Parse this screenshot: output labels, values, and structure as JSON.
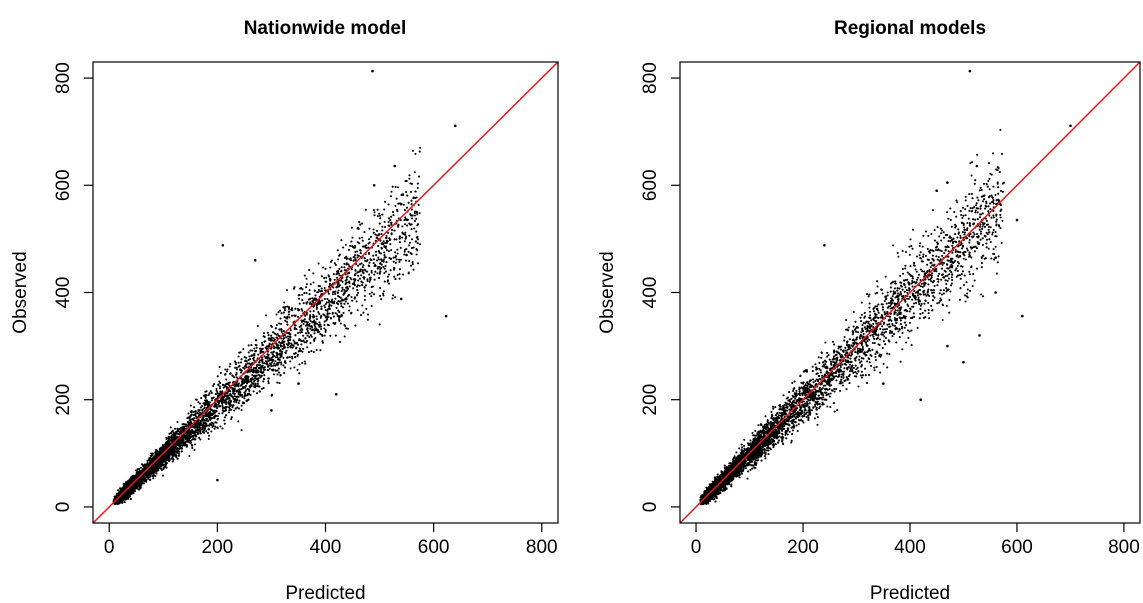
{
  "chart_data": [
    {
      "type": "scatter",
      "title": "Nationwide model",
      "xlabel": "Predicted",
      "ylabel": "Observed",
      "xlim": [
        -30,
        830
      ],
      "ylim": [
        -30,
        830
      ],
      "xticks": [
        0,
        200,
        400,
        600,
        800
      ],
      "yticks": [
        0,
        200,
        400,
        600,
        800
      ],
      "reference_line": {
        "slope": 1,
        "intercept": 0,
        "color": "#e41a1c"
      },
      "point_color": "#000000",
      "grid": false,
      "series": [
        {
          "points_summary": "about 6000 points clustered along y = x, dense below 200, spreading wider with larger values",
          "points": [
            [
              487,
              813
            ],
            [
              640,
              711
            ],
            [
              528,
              636
            ],
            [
              623,
              356
            ],
            [
              540,
              388
            ],
            [
              210,
              488
            ],
            [
              270,
              460
            ],
            [
              490,
              600
            ],
            [
              540,
              565
            ],
            [
              550,
              470
            ],
            [
              460,
              520
            ],
            [
              420,
              210
            ],
            [
              300,
              180
            ],
            [
              350,
              230
            ],
            [
              200,
              50
            ]
          ]
        }
      ]
    },
    {
      "type": "scatter",
      "title": "Regional models",
      "xlabel": "Predicted",
      "ylabel": "Observed",
      "xlim": [
        -30,
        830
      ],
      "ylim": [
        -30,
        830
      ],
      "xticks": [
        0,
        200,
        400,
        600,
        800
      ],
      "yticks": [
        0,
        200,
        400,
        600,
        800
      ],
      "reference_line": {
        "slope": 1,
        "intercept": 0,
        "color": "#e41a1c"
      },
      "point_color": "#000000",
      "grid": false,
      "series": [
        {
          "points_summary": "about 6000 points clustered along y = x, tighter than the nationwide model",
          "points": [
            [
              512,
              813
            ],
            [
              700,
              711
            ],
            [
              525,
              636
            ],
            [
              610,
              356
            ],
            [
              600,
              535
            ],
            [
              560,
              465
            ],
            [
              240,
              488
            ],
            [
              450,
              590
            ],
            [
              470,
              605
            ],
            [
              530,
              320
            ],
            [
              500,
              270
            ],
            [
              470,
              300
            ],
            [
              350,
              230
            ],
            [
              420,
              200
            ],
            [
              560,
              400
            ]
          ]
        }
      ]
    }
  ]
}
